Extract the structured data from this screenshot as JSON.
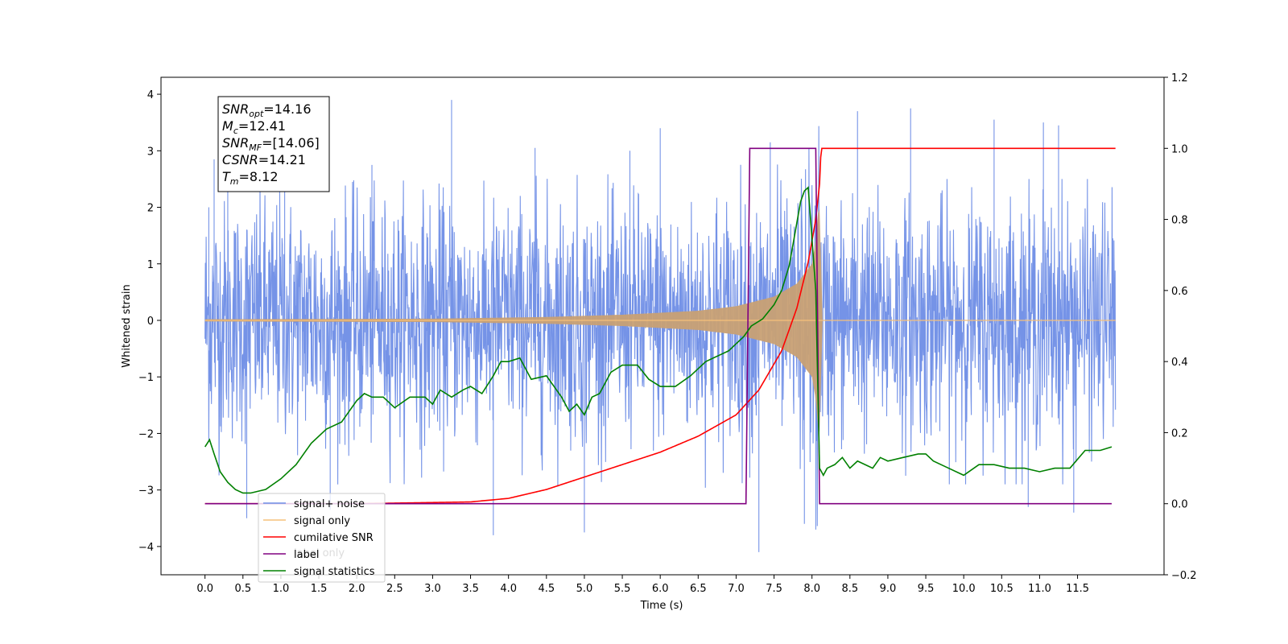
{
  "chart_data": {
    "type": "line",
    "xlabel": "Time (s)",
    "ylabel": "Whitened strain",
    "xlim": [
      -0.58,
      12.64
    ],
    "ylim": [
      -4.5,
      4.3
    ],
    "y2lim": [
      -0.2,
      1.2
    ],
    "x_ticks": [
      0.0,
      0.5,
      1.0,
      1.5,
      2.0,
      2.5,
      3.0,
      3.5,
      4.0,
      4.5,
      5.0,
      5.5,
      6.0,
      6.5,
      7.0,
      7.5,
      8.0,
      8.5,
      9.0,
      9.5,
      10.0,
      10.5,
      11.0,
      11.5
    ],
    "x_tick_labels": [
      "0.0",
      "0.5",
      "1.0",
      "1.5",
      "2.0",
      "2.5",
      "3.0",
      "3.5",
      "4.0",
      "4.5",
      "5.0",
      "5.5",
      "6.0",
      "6.5",
      "7.0",
      "7.5",
      "8.0",
      "8.5",
      "9.0",
      "9.5",
      "10.0",
      "10.5",
      "11.0",
      "11.5"
    ],
    "y_ticks": [
      4,
      3,
      2,
      1,
      0,
      -1,
      -2,
      -3,
      -4
    ],
    "y_tick_labels": [
      "4",
      "3",
      "2",
      "1",
      "0",
      "−1",
      "−2",
      "−3",
      "−4"
    ],
    "y2_ticks": [
      1.2,
      1.0,
      0.8,
      0.6,
      0.4,
      0.2,
      0.0,
      -0.2
    ],
    "y2_tick_labels": [
      "1.2",
      "1.0",
      "0.8",
      "0.6",
      "0.4",
      "0.2",
      "0.0",
      "−0.2"
    ],
    "info_box": {
      "lines": [
        {
          "main": "SNR",
          "sub": "opt",
          "value": "=14.16"
        },
        {
          "main": "M",
          "sub": "c",
          "value": "=12.41"
        },
        {
          "main": "SNR",
          "sub": "MF",
          "value": "=[14.06]"
        },
        {
          "main": "CSNR",
          "sub": "",
          "value": "=14.21"
        },
        {
          "main": "T",
          "sub": "m",
          "value": "=8.12"
        }
      ]
    },
    "legend": {
      "placement": "lower-left",
      "entries": [
        {
          "label": "signal+ noise",
          "color": "#6e8de6"
        },
        {
          "label": "signal only",
          "color": "#f5c07a"
        },
        {
          "label": "cumilative SNR",
          "color": "#ff0000"
        },
        {
          "label": "label",
          "color": "#800080"
        },
        {
          "label": "signal statistics",
          "color": "#008000"
        }
      ],
      "hidden_label": "label only"
    },
    "series": [
      {
        "name": "signal+ noise",
        "axis": "left",
        "color": "#6e8de6",
        "x_range": [
          0.0,
          12.0
        ],
        "noise_std": 1.05,
        "peak_samples": [
          [
            0.05,
            2.0
          ],
          [
            0.12,
            2.85
          ],
          [
            0.3,
            2.6
          ],
          [
            0.55,
            -3.5
          ],
          [
            1.05,
            2.9
          ],
          [
            1.65,
            -3.35
          ],
          [
            2.2,
            2.75
          ],
          [
            3.25,
            3.9
          ],
          [
            3.8,
            -3.8
          ],
          [
            4.35,
            3.05
          ],
          [
            5.0,
            -3.75
          ],
          [
            5.6,
            3.0
          ],
          [
            6.0,
            3.4
          ],
          [
            7.3,
            -4.1
          ],
          [
            7.45,
            3.15
          ],
          [
            7.9,
            -3.6
          ],
          [
            8.05,
            -3.7
          ],
          [
            8.6,
            3.7
          ],
          [
            9.3,
            3.75
          ],
          [
            10.4,
            3.55
          ],
          [
            10.85,
            -3.3
          ],
          [
            11.05,
            3.5
          ],
          [
            11.25,
            3.45
          ],
          [
            11.45,
            -3.4
          ]
        ]
      },
      {
        "name": "signal only",
        "axis": "left",
        "color": "#f5c07a",
        "envelope": [
          [
            0.0,
            0.02
          ],
          [
            3.0,
            0.03
          ],
          [
            4.5,
            0.06
          ],
          [
            5.5,
            0.1
          ],
          [
            6.5,
            0.17
          ],
          [
            7.0,
            0.25
          ],
          [
            7.5,
            0.42
          ],
          [
            7.8,
            0.65
          ],
          [
            8.0,
            1.0
          ],
          [
            8.05,
            1.4
          ],
          [
            8.08,
            1.9
          ],
          [
            8.11,
            2.0
          ],
          [
            8.13,
            0.0
          ],
          [
            12.0,
            0.0
          ]
        ]
      },
      {
        "name": "cumilative SNR",
        "axis": "right",
        "color": "#ff0000",
        "x": [
          0.0,
          2.0,
          3.5,
          4.0,
          4.5,
          5.0,
          5.5,
          6.0,
          6.5,
          7.0,
          7.3,
          7.6,
          7.8,
          7.95,
          8.05,
          8.1,
          8.12,
          12.0
        ],
        "y": [
          0.0,
          0.0,
          0.005,
          0.015,
          0.04,
          0.075,
          0.11,
          0.145,
          0.19,
          0.25,
          0.32,
          0.43,
          0.55,
          0.68,
          0.8,
          0.9,
          1.0,
          1.0
        ]
      },
      {
        "name": "label",
        "axis": "right",
        "color": "#800080",
        "x": [
          0.0,
          7.13,
          7.18,
          8.05,
          8.1,
          11.95
        ],
        "y": [
          0.0,
          0.0,
          1.0,
          1.0,
          0.0,
          0.0
        ]
      },
      {
        "name": "signal statistics",
        "axis": "right",
        "color": "#008000",
        "x": [
          0.0,
          0.06,
          0.12,
          0.2,
          0.3,
          0.4,
          0.5,
          0.6,
          0.8,
          1.0,
          1.2,
          1.4,
          1.6,
          1.8,
          1.9,
          2.0,
          2.1,
          2.2,
          2.35,
          2.5,
          2.7,
          2.9,
          3.0,
          3.1,
          3.25,
          3.4,
          3.5,
          3.65,
          3.8,
          3.9,
          4.0,
          4.15,
          4.3,
          4.5,
          4.7,
          4.8,
          4.9,
          5.0,
          5.1,
          5.2,
          5.35,
          5.5,
          5.7,
          5.85,
          6.0,
          6.2,
          6.4,
          6.6,
          6.8,
          6.9,
          7.0,
          7.1,
          7.2,
          7.35,
          7.5,
          7.6,
          7.7,
          7.75,
          7.8,
          7.85,
          7.9,
          7.95,
          8.05,
          8.1,
          8.15,
          8.2,
          8.3,
          8.4,
          8.5,
          8.6,
          8.8,
          8.9,
          9.0,
          9.2,
          9.4,
          9.5,
          9.6,
          9.8,
          10.0,
          10.2,
          10.4,
          10.6,
          10.8,
          11.0,
          11.2,
          11.4,
          11.6,
          11.8,
          11.95
        ],
        "y": [
          0.16,
          0.18,
          0.14,
          0.09,
          0.06,
          0.04,
          0.03,
          0.03,
          0.04,
          0.07,
          0.11,
          0.17,
          0.21,
          0.23,
          0.26,
          0.29,
          0.31,
          0.3,
          0.3,
          0.27,
          0.3,
          0.3,
          0.28,
          0.32,
          0.3,
          0.32,
          0.33,
          0.31,
          0.36,
          0.4,
          0.4,
          0.41,
          0.35,
          0.36,
          0.3,
          0.26,
          0.28,
          0.25,
          0.3,
          0.31,
          0.37,
          0.39,
          0.39,
          0.35,
          0.33,
          0.33,
          0.36,
          0.4,
          0.42,
          0.43,
          0.45,
          0.47,
          0.5,
          0.52,
          0.56,
          0.6,
          0.67,
          0.73,
          0.79,
          0.85,
          0.88,
          0.89,
          0.6,
          0.1,
          0.08,
          0.1,
          0.11,
          0.13,
          0.1,
          0.12,
          0.1,
          0.13,
          0.12,
          0.13,
          0.14,
          0.14,
          0.12,
          0.1,
          0.08,
          0.11,
          0.11,
          0.1,
          0.1,
          0.09,
          0.1,
          0.1,
          0.15,
          0.15,
          0.16
        ]
      }
    ]
  }
}
